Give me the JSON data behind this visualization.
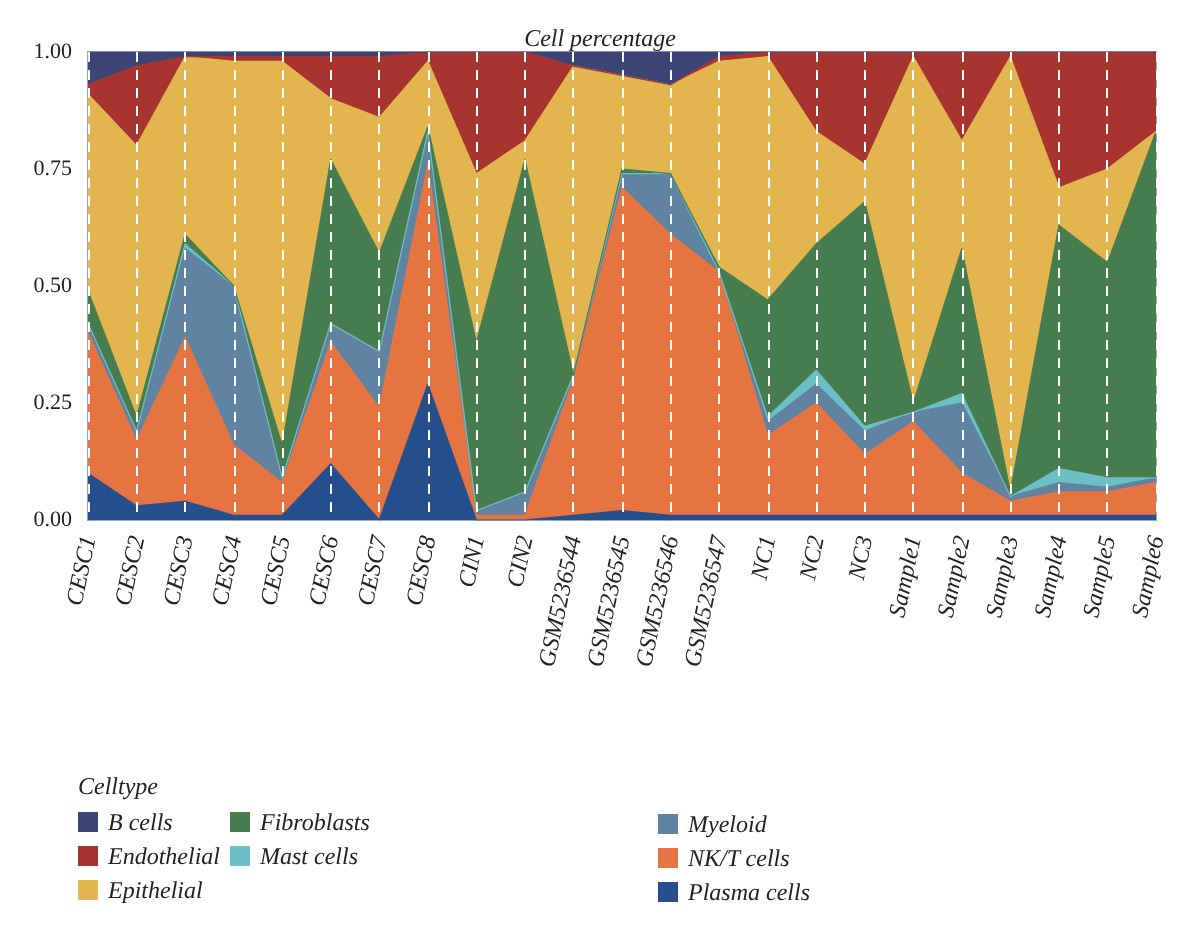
{
  "chart_data": {
    "type": "area",
    "title": "Cell percentage",
    "legend_title": "Celltype",
    "stacked": true,
    "grid": "x",
    "legend": "bottom left",
    "categories": [
      "CESC1",
      "CESC2",
      "CESC3",
      "CESC4",
      "CESC5",
      "CESC6",
      "CESC7",
      "CESC8",
      "CIN1",
      "CIN2",
      "GSM5236544",
      "GSM5236545",
      "GSM5236546",
      "GSM5236547",
      "NC1",
      "NC2",
      "NC3",
      "Sample1",
      "Sample2",
      "Sample3",
      "Sample4",
      "Sample5",
      "Sample6"
    ],
    "ylim": [
      0,
      1
    ],
    "yticks": [
      {
        "value": 0,
        "label": "0.00"
      },
      {
        "value": 0.25,
        "label": "0.25"
      },
      {
        "value": 0.5,
        "label": "0.50"
      },
      {
        "value": 0.75,
        "label": "0.75"
      },
      {
        "value": 1,
        "label": "1.00"
      }
    ],
    "series": [
      {
        "name": "Plasma cells",
        "color": "#244e8c",
        "values": [
          0.1,
          0.03,
          0.04,
          0.01,
          0.01,
          0.12,
          0.0,
          0.29,
          0.0,
          0.0,
          0.01,
          0.02,
          0.01,
          0.01,
          0.01,
          0.01,
          0.01,
          0.01,
          0.01,
          0.01,
          0.01,
          0.01,
          0.01
        ]
      },
      {
        "name": "NK/T cells",
        "color": "#e57441",
        "values": [
          0.3,
          0.14,
          0.35,
          0.15,
          0.07,
          0.26,
          0.24,
          0.47,
          0.01,
          0.01,
          0.29,
          0.69,
          0.6,
          0.52,
          0.17,
          0.24,
          0.13,
          0.2,
          0.09,
          0.03,
          0.05,
          0.05,
          0.07
        ]
      },
      {
        "name": "Myeloid",
        "color": "#5f83a0",
        "values": [
          0.02,
          0.02,
          0.19,
          0.34,
          0.01,
          0.04,
          0.12,
          0.07,
          0.01,
          0.05,
          0.01,
          0.03,
          0.13,
          0.0,
          0.03,
          0.04,
          0.05,
          0.02,
          0.15,
          0.01,
          0.02,
          0.01,
          0.01
        ]
      },
      {
        "name": "Mast cells",
        "color": "#6bbfc6",
        "values": [
          0.0,
          0.0,
          0.01,
          0.0,
          0.0,
          0.0,
          0.0,
          0.0,
          0.0,
          0.0,
          0.0,
          0.0,
          0.0,
          0.0,
          0.01,
          0.03,
          0.01,
          0.0,
          0.02,
          0.0,
          0.03,
          0.02,
          0.0
        ]
      },
      {
        "name": "Fibroblasts",
        "color": "#477c4f",
        "values": [
          0.07,
          0.03,
          0.02,
          0.0,
          0.07,
          0.35,
          0.21,
          0.01,
          0.36,
          0.71,
          0.0,
          0.01,
          0.0,
          0.01,
          0.25,
          0.27,
          0.48,
          0.02,
          0.31,
          0.01,
          0.52,
          0.46,
          0.74
        ]
      },
      {
        "name": "Epithelial",
        "color": "#e3b54f",
        "values": [
          0.42,
          0.58,
          0.38,
          0.48,
          0.82,
          0.13,
          0.29,
          0.14,
          0.36,
          0.04,
          0.66,
          0.2,
          0.19,
          0.44,
          0.52,
          0.24,
          0.08,
          0.74,
          0.23,
          0.93,
          0.08,
          0.2,
          0.0
        ]
      },
      {
        "name": "Endothelial",
        "color": "#a8342f",
        "values": [
          0.02,
          0.17,
          0.0,
          0.01,
          0.01,
          0.09,
          0.13,
          0.02,
          0.26,
          0.19,
          0.0,
          0.0,
          0.0,
          0.01,
          0.01,
          0.17,
          0.24,
          0.01,
          0.19,
          0.01,
          0.29,
          0.25,
          0.17
        ]
      },
      {
        "name": "B cells",
        "color": "#3d4577",
        "values": [
          0.07,
          0.03,
          0.01,
          0.01,
          0.01,
          0.01,
          0.01,
          0.0,
          0.0,
          0.0,
          0.03,
          0.05,
          0.07,
          0.01,
          0.0,
          0.0,
          0.0,
          0.0,
          0.0,
          0.0,
          0.0,
          0.0,
          0.0
        ]
      }
    ]
  }
}
